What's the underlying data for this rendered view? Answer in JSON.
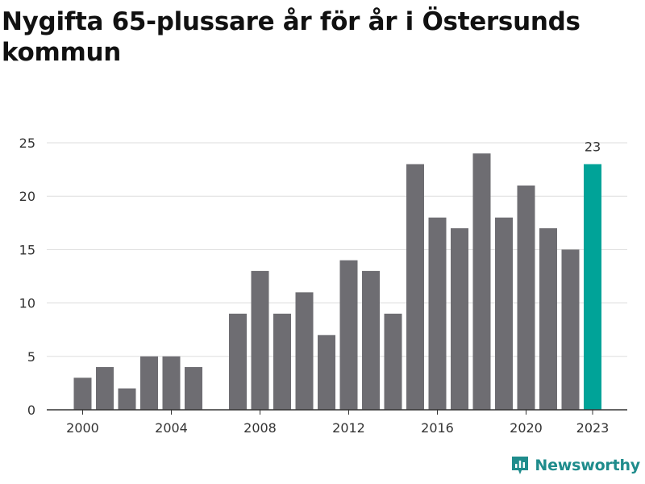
{
  "chart_data": {
    "type": "bar",
    "title": "Nygifta 65-plussare år för år i Östersunds kommun",
    "x": [
      2000,
      2001,
      2002,
      2003,
      2004,
      2005,
      2006,
      2007,
      2008,
      2009,
      2010,
      2011,
      2012,
      2013,
      2014,
      2015,
      2016,
      2017,
      2018,
      2019,
      2020,
      2021,
      2022,
      2023
    ],
    "values": [
      3,
      4,
      2,
      5,
      5,
      4,
      0,
      9,
      13,
      9,
      11,
      7,
      14,
      13,
      9,
      23,
      18,
      17,
      24,
      18,
      21,
      17,
      15,
      23
    ],
    "x_tick_labels": [
      "2000",
      "2004",
      "2008",
      "2012",
      "2016",
      "2020",
      "2023"
    ],
    "y_ticks": [
      0,
      5,
      10,
      15,
      20,
      25
    ],
    "ylim": [
      0,
      25
    ],
    "grid": true,
    "highlight": {
      "x": 2023,
      "value_label": "23"
    },
    "colors": {
      "bar": "#6e6d72",
      "highlight": "#00a398",
      "grid": "#dddddd",
      "axis": "#333333"
    }
  },
  "brand": {
    "name": "Newsworthy",
    "icon": "newsworthy-logo-icon",
    "color": "#1f8c8c"
  }
}
